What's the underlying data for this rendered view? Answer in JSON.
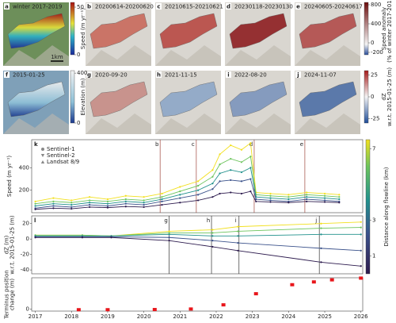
{
  "maps": [
    {
      "label": "a",
      "title": "winter 2017-2019",
      "scale": "1km"
    },
    {
      "label": "b",
      "title": "20200614-20200620"
    },
    {
      "label": "c",
      "title": "20210615-20210621"
    },
    {
      "label": "d",
      "title": "20230118-20230130"
    },
    {
      "label": "e",
      "title": "20240605-20240617"
    },
    {
      "label": "f",
      "title": "2015-01-25"
    },
    {
      "label": "g",
      "title": "2020-09-20"
    },
    {
      "label": "h",
      "title": "2021-11-15"
    },
    {
      "label": "i",
      "title": "2022-08-20"
    },
    {
      "label": "j",
      "title": "2024-11-07"
    }
  ],
  "colorbars": [
    {
      "title": [
        "Speed (m yr⁻¹)"
      ],
      "lim": [
        0,
        55
      ],
      "ticks": [
        0,
        50
      ]
    },
    {
      "title": [
        "Speed anomaly",
        "(% of winter 2017-2019)"
      ],
      "lim": [
        -250,
        850
      ],
      "ticks": [
        -200,
        0,
        400,
        800
      ]
    },
    {
      "title": [
        "Elevation (m)"
      ],
      "lim": [
        0,
        420
      ],
      "ticks": [
        0,
        400
      ]
    },
    {
      "title": [
        "dZ",
        "w.r.t. 2015-01-25 (m)"
      ],
      "lim": [
        -30,
        30
      ],
      "ticks": [
        -25,
        0,
        25
      ]
    }
  ],
  "chart_data": [
    {
      "type": "line",
      "panel": "k",
      "ylabel": [
        "Speed (m yr⁻¹)"
      ],
      "xlim": [
        2016.9,
        2026.05
      ],
      "ylim": [
        0,
        650
      ],
      "yticks": [
        200,
        400
      ],
      "legend": [
        {
          "name": "Sentinel-1",
          "marker": "circle"
        },
        {
          "name": "Sentinel-2",
          "marker": "triangle-down"
        },
        {
          "name": "Landsat 8/9",
          "marker": "triangle-up"
        }
      ],
      "events": {
        "x": [
          2020.45,
          2021.45,
          2023.05,
          2024.45
        ],
        "labels": [
          "b",
          "c",
          "d",
          "e"
        ]
      },
      "x": [
        2017.0,
        2017.5,
        2018.0,
        2018.5,
        2019.0,
        2019.5,
        2020.0,
        2020.5,
        2021.0,
        2021.5,
        2021.9,
        2022.1,
        2022.4,
        2022.7,
        2022.95,
        2023.1,
        2023.5,
        2024.0,
        2024.5,
        2025.0,
        2025.4
      ],
      "series": [
        {
          "color": "#f2e01e",
          "values": [
            100,
            130,
            110,
            140,
            120,
            150,
            140,
            170,
            230,
            280,
            380,
            520,
            600,
            560,
            620,
            180,
            170,
            160,
            180,
            170,
            160
          ]
        },
        {
          "color": "#6cc45c",
          "values": [
            80,
            100,
            90,
            110,
            100,
            120,
            110,
            140,
            190,
            240,
            320,
            430,
            480,
            450,
            500,
            160,
            150,
            140,
            160,
            150,
            140
          ]
        },
        {
          "color": "#21918c",
          "values": [
            60,
            80,
            70,
            90,
            80,
            100,
            90,
            120,
            160,
            200,
            260,
            350,
            380,
            360,
            400,
            140,
            130,
            120,
            140,
            130,
            120
          ]
        },
        {
          "color": "#3b528b",
          "values": [
            40,
            60,
            50,
            70,
            60,
            80,
            70,
            100,
            130,
            160,
            210,
            280,
            290,
            280,
            300,
            120,
            110,
            100,
            120,
            110,
            100
          ]
        },
        {
          "color": "#2d1b4e",
          "values": [
            30,
            40,
            35,
            50,
            45,
            55,
            50,
            70,
            90,
            110,
            140,
            170,
            180,
            170,
            190,
            100,
            95,
            90,
            100,
            95,
            90
          ]
        }
      ],
      "colorbar": {
        "title": "Distance along flowline (km)",
        "lim": [
          0,
          7.5
        ],
        "ticks": [
          1,
          3,
          7
        ],
        "colors": [
          "#2d1b4e",
          "#3b528b",
          "#21918c",
          "#6cc45c",
          "#f2e01e"
        ]
      }
    },
    {
      "type": "line",
      "panel": "l",
      "ylabel": [
        "dZ (m)",
        "w.r.t. 2015-01-25 (m)"
      ],
      "xlim": [
        2016.9,
        2026.05
      ],
      "ylim": [
        -45,
        30
      ],
      "yticks": [
        -40,
        -20,
        0,
        20
      ],
      "events": {
        "x": [
          2020.7,
          2021.87,
          2022.63,
          2024.85
        ],
        "labels": [
          "g",
          "h",
          "i",
          "j"
        ]
      },
      "x": [
        2017.0,
        2018.3,
        2019.1,
        2020.7,
        2021.9,
        2022.6,
        2024.9,
        2026.0
      ],
      "series": [
        {
          "color": "#f2e01e",
          "values": [
            5,
            5,
            4,
            10,
            12,
            16,
            20,
            22
          ]
        },
        {
          "color": "#6cc45c",
          "values": [
            5,
            5,
            4,
            8,
            8,
            10,
            14,
            15
          ]
        },
        {
          "color": "#21918c",
          "values": [
            4,
            4,
            4,
            6,
            4,
            4,
            6,
            6
          ]
        },
        {
          "color": "#3b528b",
          "values": [
            3,
            3,
            3,
            2,
            -2,
            -5,
            -12,
            -15
          ]
        },
        {
          "color": "#2d1b4e",
          "values": [
            2,
            2,
            2,
            -2,
            -10,
            -15,
            -30,
            -35
          ]
        }
      ]
    },
    {
      "type": "scatter",
      "ylabel": [
        "Terminus position",
        "change (m)"
      ],
      "xlim": [
        2016.9,
        2026.05
      ],
      "ylim": [
        -60,
        900
      ],
      "yticks": [
        0
      ],
      "color": "#e8161b",
      "xticks": [
        2017,
        2018,
        2019,
        2020,
        2021,
        2022,
        2023,
        2024,
        2025,
        2026
      ],
      "x": [
        2018.2,
        2019.0,
        2020.3,
        2021.3,
        2022.2,
        2023.1,
        2024.1,
        2024.7,
        2025.2,
        2026.0
      ],
      "values": [
        -20,
        -20,
        -15,
        0,
        120,
        440,
        700,
        780,
        840,
        890
      ]
    }
  ]
}
